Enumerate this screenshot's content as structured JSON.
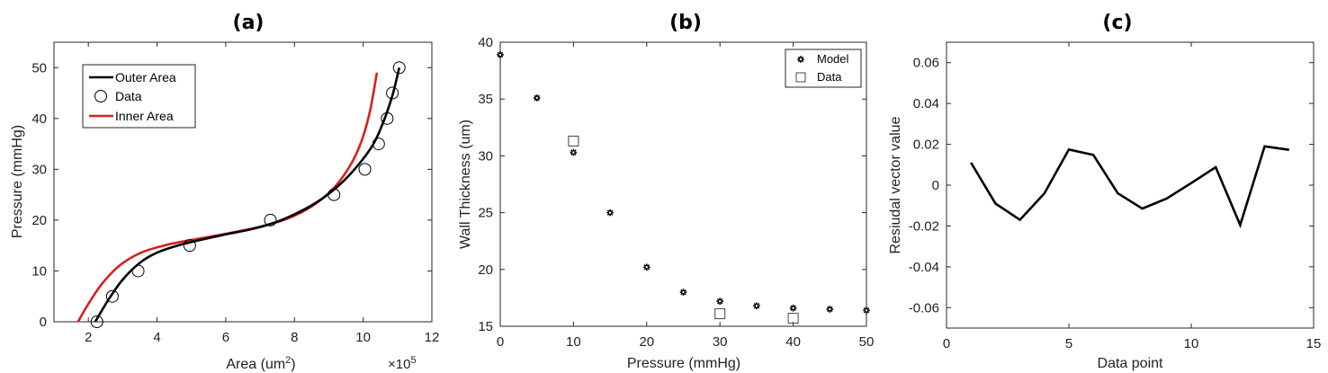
{
  "chart_data": [
    {
      "panel": "(a)",
      "type": "line",
      "title": "(a)",
      "xlabel": "Area (um",
      "xlabel_sup": "2",
      "xlabel_close": ")",
      "ylabel": "Pressure (mmHg)",
      "x_scale_label": "×10",
      "x_scale_exp": "5",
      "xlim": [
        1,
        12
      ],
      "ylim": [
        0,
        55
      ],
      "xticks": [
        2,
        4,
        6,
        8,
        10,
        12
      ],
      "yticks": [
        0,
        10,
        20,
        30,
        40,
        50
      ],
      "legend": [
        "Outer Area",
        "Data",
        "Inner Area"
      ],
      "series": [
        {
          "name": "Outer Area",
          "color": "#000000",
          "x": [
            2.2,
            2.6,
            3.0,
            3.5,
            4.0,
            4.6,
            5.2,
            6.0,
            6.8,
            7.5,
            8.2,
            8.8,
            9.4,
            9.9,
            10.3,
            10.6,
            10.85,
            11.05
          ],
          "y": [
            0,
            4.5,
            8.3,
            11.6,
            13.6,
            15.0,
            16.0,
            17.2,
            18.3,
            19.7,
            21.8,
            24.2,
            27.5,
            31.2,
            35.0,
            39.5,
            44.5,
            50.0
          ]
        },
        {
          "name": "Inner Area",
          "color": "#d62020",
          "x": [
            1.7,
            2.0,
            2.4,
            2.9,
            3.5,
            4.2,
            5.0,
            6.0,
            7.0,
            7.8,
            8.5,
            9.1,
            9.6,
            9.95,
            10.2,
            10.4
          ],
          "y": [
            0,
            3.5,
            7.5,
            11.0,
            13.5,
            15.0,
            16.1,
            17.3,
            18.7,
            20.3,
            22.7,
            26.0,
            30.5,
            35.5,
            41.5,
            49.0
          ]
        },
        {
          "name": "Data",
          "marker": "circle",
          "x": [
            2.25,
            2.7,
            3.45,
            4.95,
            7.3,
            9.15,
            10.05,
            10.45,
            10.7,
            10.85,
            11.05
          ],
          "y": [
            0,
            5,
            10,
            15,
            20,
            25,
            30,
            35,
            40,
            45,
            50
          ]
        }
      ]
    },
    {
      "panel": "(b)",
      "type": "scatter",
      "title": "(b)",
      "xlabel": "Pressure (mmHg)",
      "ylabel": "Wall Thickness (um)",
      "xlim": [
        0,
        50
      ],
      "ylim": [
        15,
        40
      ],
      "xticks": [
        0,
        10,
        20,
        30,
        40,
        50
      ],
      "yticks": [
        15,
        20,
        25,
        30,
        35,
        40
      ],
      "legend": [
        "Model",
        "Data"
      ],
      "series": [
        {
          "name": "Model",
          "marker": "star",
          "x": [
            0,
            5,
            10,
            15,
            20,
            25,
            30,
            35,
            40,
            45,
            50
          ],
          "y": [
            38.9,
            35.1,
            30.3,
            25.0,
            20.2,
            18.0,
            17.2,
            16.8,
            16.6,
            16.5,
            16.4
          ]
        },
        {
          "name": "Data",
          "marker": "square",
          "x": [
            10,
            30,
            40
          ],
          "y": [
            31.3,
            16.1,
            15.7
          ]
        }
      ]
    },
    {
      "panel": "(c)",
      "type": "line",
      "title": "(c)",
      "xlabel": "Data point",
      "ylabel": "Resiudal vector value",
      "xlim": [
        0,
        15
      ],
      "ylim": [
        -0.07,
        0.07
      ],
      "xticks": [
        0,
        5,
        10,
        15
      ],
      "yticks": [
        "-0.06",
        "-0.04",
        "-0.02",
        "0",
        "0.02",
        "0.04",
        "0.06"
      ],
      "series": [
        {
          "name": "Residual",
          "color": "#000000",
          "x": [
            1,
            2,
            3,
            4,
            5,
            6,
            7,
            8,
            9,
            10,
            11,
            12,
            13,
            14
          ],
          "y": [
            0.011,
            -0.009,
            -0.017,
            -0.004,
            0.0175,
            0.0148,
            -0.004,
            -0.0115,
            -0.0065,
            0.001,
            0.0088,
            -0.0195,
            0.019,
            0.0173
          ]
        }
      ]
    }
  ]
}
